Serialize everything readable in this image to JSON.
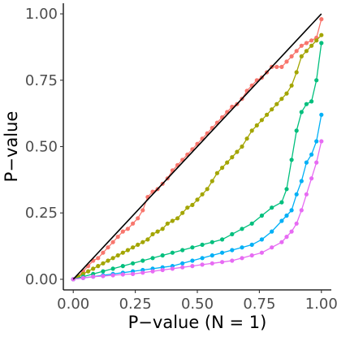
{
  "chart_data": {
    "type": "line",
    "xlabel": "P−value (N = 1)",
    "ylabel": "P−value",
    "xlim": [
      -0.04,
      1.04
    ],
    "ylim": [
      -0.04,
      1.04
    ],
    "x_ticks": [
      0.0,
      0.25,
      0.5,
      0.75,
      1.0
    ],
    "x_tick_labels": [
      "0.00",
      "0.25",
      "0.50",
      "0.75",
      "1.00"
    ],
    "y_ticks": [
      0.0,
      0.25,
      0.5,
      0.75,
      1.0
    ],
    "y_tick_labels": [
      "0.00",
      "0.25",
      "0.50",
      "0.75",
      "1.00"
    ],
    "grid": false,
    "legend": "none",
    "reference_line": {
      "from": [
        0,
        0
      ],
      "to": [
        1,
        1
      ],
      "color": "#000000"
    },
    "series": [
      {
        "color": "#F8766D",
        "x": [
          0,
          0.02,
          0.04,
          0.06,
          0.08,
          0.1,
          0.12,
          0.14,
          0.16,
          0.18,
          0.2,
          0.22,
          0.24,
          0.26,
          0.28,
          0.3,
          0.32,
          0.34,
          0.36,
          0.38,
          0.4,
          0.42,
          0.44,
          0.46,
          0.48,
          0.5,
          0.52,
          0.54,
          0.56,
          0.58,
          0.6,
          0.62,
          0.64,
          0.66,
          0.68,
          0.7,
          0.72,
          0.74,
          0.76,
          0.78,
          0.8,
          0.82,
          0.84,
          0.86,
          0.88,
          0.9,
          0.92,
          0.94,
          0.96,
          0.98,
          1.0
        ],
        "y": [
          0,
          0.01,
          0.03,
          0.05,
          0.07,
          0.08,
          0.1,
          0.12,
          0.14,
          0.16,
          0.18,
          0.19,
          0.21,
          0.23,
          0.26,
          0.31,
          0.33,
          0.34,
          0.36,
          0.38,
          0.41,
          0.43,
          0.45,
          0.47,
          0.49,
          0.51,
          0.53,
          0.55,
          0.57,
          0.59,
          0.61,
          0.63,
          0.65,
          0.66,
          0.68,
          0.71,
          0.73,
          0.75,
          0.76,
          0.78,
          0.8,
          0.8,
          0.8,
          0.82,
          0.84,
          0.86,
          0.88,
          0.89,
          0.9,
          0.91,
          0.98
        ]
      },
      {
        "color": "#A3A500",
        "x": [
          0,
          0.02,
          0.04,
          0.06,
          0.08,
          0.1,
          0.12,
          0.14,
          0.16,
          0.18,
          0.2,
          0.22,
          0.24,
          0.26,
          0.28,
          0.3,
          0.32,
          0.34,
          0.36,
          0.38,
          0.4,
          0.42,
          0.44,
          0.46,
          0.48,
          0.5,
          0.52,
          0.54,
          0.56,
          0.58,
          0.6,
          0.62,
          0.64,
          0.66,
          0.68,
          0.7,
          0.72,
          0.74,
          0.76,
          0.78,
          0.8,
          0.82,
          0.84,
          0.86,
          0.88,
          0.9,
          0.92,
          0.94,
          0.96,
          0.98,
          1.0
        ],
        "y": [
          0,
          0.01,
          0.02,
          0.03,
          0.04,
          0.05,
          0.06,
          0.07,
          0.08,
          0.09,
          0.1,
          0.11,
          0.12,
          0.13,
          0.14,
          0.15,
          0.17,
          0.18,
          0.19,
          0.21,
          0.22,
          0.23,
          0.25,
          0.27,
          0.28,
          0.3,
          0.32,
          0.34,
          0.37,
          0.4,
          0.42,
          0.44,
          0.46,
          0.48,
          0.5,
          0.53,
          0.56,
          0.58,
          0.6,
          0.62,
          0.64,
          0.66,
          0.68,
          0.7,
          0.73,
          0.78,
          0.84,
          0.86,
          0.88,
          0.9,
          0.92
        ]
      },
      {
        "color": "#00BF7D",
        "x": [
          0,
          0.04,
          0.08,
          0.12,
          0.16,
          0.2,
          0.24,
          0.28,
          0.32,
          0.36,
          0.4,
          0.44,
          0.48,
          0.52,
          0.56,
          0.6,
          0.64,
          0.68,
          0.72,
          0.76,
          0.8,
          0.84,
          0.86,
          0.88,
          0.9,
          0.92,
          0.94,
          0.96,
          0.98,
          1.0
        ],
        "y": [
          0,
          0.01,
          0.02,
          0.03,
          0.04,
          0.05,
          0.06,
          0.07,
          0.08,
          0.09,
          0.1,
          0.11,
          0.12,
          0.13,
          0.14,
          0.15,
          0.17,
          0.19,
          0.21,
          0.24,
          0.27,
          0.29,
          0.34,
          0.45,
          0.56,
          0.63,
          0.66,
          0.67,
          0.75,
          0.89
        ]
      },
      {
        "color": "#00B0F6",
        "x": [
          0,
          0.04,
          0.08,
          0.12,
          0.16,
          0.2,
          0.24,
          0.28,
          0.32,
          0.36,
          0.4,
          0.44,
          0.48,
          0.52,
          0.56,
          0.6,
          0.64,
          0.68,
          0.72,
          0.76,
          0.8,
          0.84,
          0.86,
          0.88,
          0.9,
          0.92,
          0.94,
          0.96,
          0.98,
          1.0
        ],
        "y": [
          0,
          0.005,
          0.01,
          0.015,
          0.02,
          0.025,
          0.03,
          0.035,
          0.04,
          0.045,
          0.05,
          0.06,
          0.07,
          0.08,
          0.09,
          0.1,
          0.11,
          0.12,
          0.13,
          0.15,
          0.18,
          0.22,
          0.24,
          0.26,
          0.32,
          0.37,
          0.44,
          0.47,
          0.52,
          0.62
        ]
      },
      {
        "color": "#E76BF3",
        "x": [
          0,
          0.04,
          0.08,
          0.12,
          0.16,
          0.2,
          0.24,
          0.28,
          0.32,
          0.36,
          0.4,
          0.44,
          0.48,
          0.52,
          0.56,
          0.6,
          0.64,
          0.68,
          0.72,
          0.76,
          0.8,
          0.84,
          0.86,
          0.88,
          0.9,
          0.92,
          0.94,
          0.96,
          0.98,
          1.0
        ],
        "y": [
          0,
          0.005,
          0.01,
          0.012,
          0.015,
          0.018,
          0.02,
          0.025,
          0.03,
          0.035,
          0.04,
          0.045,
          0.05,
          0.055,
          0.06,
          0.065,
          0.07,
          0.08,
          0.09,
          0.1,
          0.12,
          0.14,
          0.16,
          0.18,
          0.21,
          0.26,
          0.32,
          0.38,
          0.44,
          0.52
        ]
      }
    ]
  }
}
